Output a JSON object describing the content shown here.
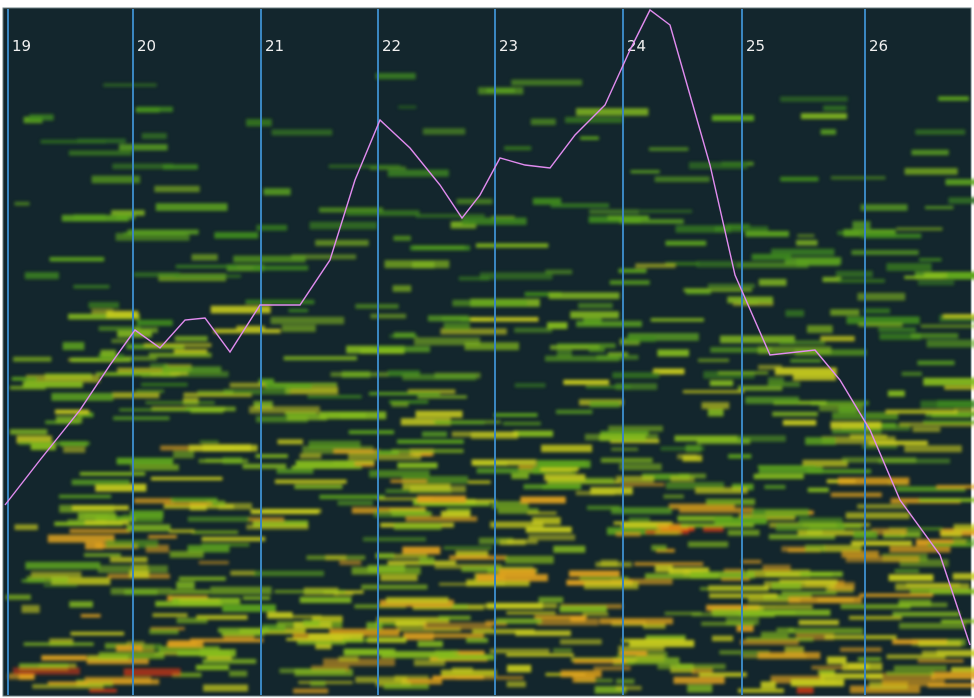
{
  "measures": [
    "19",
    "20",
    "21",
    "22",
    "23",
    "24",
    "25",
    "26"
  ]
}
